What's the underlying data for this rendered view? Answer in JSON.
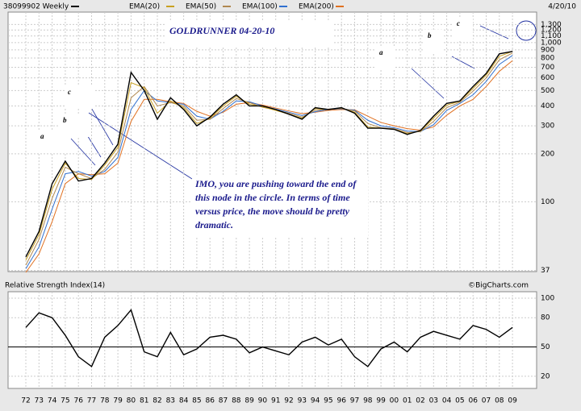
{
  "chart_data": [
    {
      "type": "line",
      "title": "GOLDRUNNER 04-20-10",
      "subtitle": "38099902 Weekly",
      "date": "4/20/10",
      "note": "IMO, you are pushing toward the end of this node in the circle.  In terms of time versus price, the move should be pretty dramatic.",
      "annotations": [
        "a",
        "b",
        "c",
        "a",
        "b",
        "c"
      ],
      "categories": [
        "72",
        "73",
        "74",
        "75",
        "76",
        "77",
        "78",
        "79",
        "80",
        "81",
        "82",
        "83",
        "84",
        "85",
        "86",
        "87",
        "88",
        "89",
        "90",
        "91",
        "92",
        "93",
        "94",
        "95",
        "96",
        "97",
        "98",
        "99",
        "00",
        "01",
        "02",
        "03",
        "04",
        "05",
        "06",
        "07",
        "08",
        "09"
      ],
      "log_scale": true,
      "grid": true,
      "ylim": [
        36,
        1400
      ],
      "yticks": [
        37,
        100,
        200,
        300,
        400,
        500,
        600,
        700,
        800,
        900,
        {
          "value": 1000,
          "label": "1,000"
        },
        {
          "value": 1100,
          "label": "1,100"
        },
        {
          "value": 1200,
          "label": "1,200"
        },
        {
          "value": 1300,
          "label": "1,300"
        }
      ],
      "series": [
        {
          "name": "38099902",
          "color": "#000000",
          "values": [
            45,
            65,
            130,
            180,
            135,
            140,
            175,
            230,
            650,
            500,
            330,
            450,
            380,
            300,
            340,
            410,
            470,
            400,
            400,
            380,
            355,
            330,
            390,
            380,
            390,
            360,
            290,
            290,
            285,
            265,
            280,
            345,
            415,
            430,
            530,
            640,
            850,
            880
          ]
        },
        {
          "name": "EMA(20)",
          "color": "#c8a020",
          "values": [
            43,
            62,
            120,
            175,
            140,
            138,
            170,
            220,
            560,
            520,
            360,
            430,
            390,
            310,
            335,
            400,
            460,
            410,
            395,
            375,
            355,
            335,
            385,
            380,
            388,
            365,
            295,
            290,
            285,
            268,
            278,
            335,
            405,
            428,
            515,
            625,
            820,
            880
          ]
        },
        {
          "name": "EMA(50)",
          "color": "#b08850",
          "values": [
            40,
            58,
            105,
            165,
            150,
            140,
            160,
            205,
            450,
            530,
            400,
            420,
            400,
            325,
            330,
            385,
            445,
            420,
            392,
            378,
            360,
            340,
            375,
            382,
            386,
            372,
            310,
            292,
            288,
            272,
            276,
            320,
            390,
            422,
            495,
            600,
            780,
            860
          ]
        },
        {
          "name": "EMA(100)",
          "color": "#3070d0",
          "values": [
            38,
            52,
            90,
            150,
            155,
            145,
            155,
            190,
            380,
            500,
            430,
            420,
            410,
            345,
            330,
            370,
            430,
            425,
            400,
            382,
            365,
            348,
            368,
            380,
            384,
            376,
            325,
            300,
            292,
            278,
            276,
            305,
            375,
            415,
            470,
            570,
            730,
            830
          ]
        },
        {
          "name": "EMA(200)",
          "color": "#e07020",
          "values": [
            36,
            47,
            75,
            130,
            150,
            148,
            150,
            175,
            320,
            440,
            440,
            425,
            415,
            370,
            345,
            365,
            410,
            420,
            405,
            388,
            372,
            358,
            365,
            375,
            380,
            378,
            345,
            315,
            300,
            288,
            282,
            295,
            350,
            400,
            440,
            530,
            660,
            770
          ]
        }
      ]
    },
    {
      "type": "line",
      "title": "Relative Strength Index(14)",
      "credit": "©BigCharts.com",
      "ylim": [
        10,
        100
      ],
      "yticks": [
        20,
        50,
        80,
        100
      ],
      "series": [
        {
          "name": "RSI",
          "color": "#000000",
          "values": [
            70,
            85,
            80,
            62,
            40,
            30,
            60,
            72,
            88,
            45,
            40,
            65,
            42,
            48,
            60,
            62,
            58,
            44,
            50,
            46,
            42,
            55,
            60,
            52,
            58,
            40,
            30,
            48,
            55,
            45,
            60,
            66,
            62,
            58,
            72,
            68,
            60,
            70
          ]
        }
      ]
    }
  ]
}
